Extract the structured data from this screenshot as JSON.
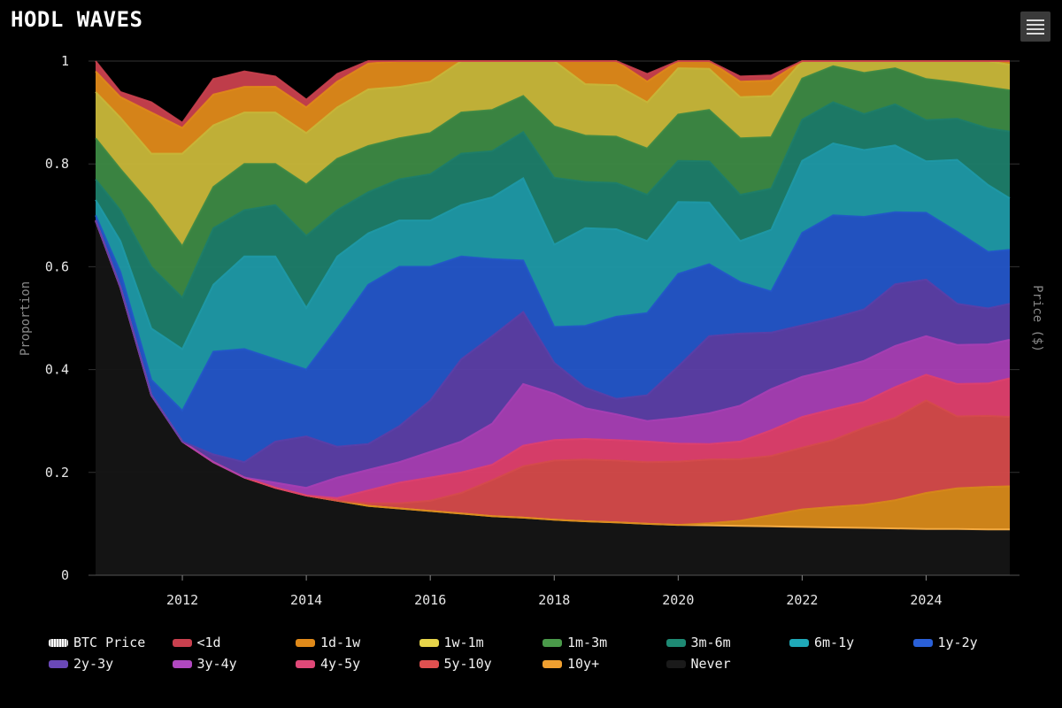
{
  "title": "HODL WAVES",
  "menu_icon": "hamburger-icon",
  "chart_data": {
    "type": "area",
    "stacked": true,
    "xlabel": "",
    "ylabel": "Proportion",
    "ylabel_right": "Price ($)",
    "ylim": [
      0,
      1
    ],
    "xlim": [
      2010.6,
      2025.35
    ],
    "y_ticks": [
      "0",
      "0.2",
      "0.4",
      "0.6",
      "0.8",
      "1"
    ],
    "x_ticks": [
      "2012",
      "2014",
      "2016",
      "2018",
      "2020",
      "2022",
      "2024"
    ],
    "grid": true,
    "legend_position": "bottom",
    "x": [
      2010.6,
      2011.0,
      2011.5,
      2012.0,
      2012.5,
      2013.0,
      2013.5,
      2014.0,
      2014.5,
      2015.0,
      2015.5,
      2016.0,
      2016.5,
      2017.0,
      2017.5,
      2018.0,
      2018.5,
      2019.0,
      2019.5,
      2020.0,
      2020.5,
      2021.0,
      2021.5,
      2022.0,
      2022.5,
      2023.0,
      2023.5,
      2024.0,
      2024.5,
      2025.0,
      2025.35
    ],
    "series": [
      {
        "name": "Never",
        "color": "#151515",
        "values": [
          0.69,
          0.56,
          0.35,
          0.26,
          0.22,
          0.19,
          0.17,
          0.155,
          0.145,
          0.135,
          0.13,
          0.125,
          0.12,
          0.115,
          0.112,
          0.108,
          0.105,
          0.103,
          0.1,
          0.098,
          0.097,
          0.096,
          0.095,
          0.094,
          0.093,
          0.092,
          0.091,
          0.09,
          0.09,
          0.089,
          0.089
        ]
      },
      {
        "name": "10y+",
        "color": "#d88a1a",
        "values": [
          0,
          0,
          0,
          0,
          0,
          0,
          0,
          0,
          0,
          0,
          0,
          0,
          0,
          0,
          0,
          0,
          0,
          0,
          0,
          0,
          0.004,
          0.01,
          0.022,
          0.034,
          0.04,
          0.045,
          0.055,
          0.07,
          0.079,
          0.083,
          0.084
        ]
      },
      {
        "name": "5y-10y",
        "color": "#d64b4b",
        "values": [
          0,
          0,
          0,
          0,
          0,
          0,
          0,
          0,
          0,
          0.005,
          0.01,
          0.02,
          0.04,
          0.07,
          0.1,
          0.115,
          0.12,
          0.12,
          0.12,
          0.123,
          0.124,
          0.12,
          0.115,
          0.12,
          0.13,
          0.15,
          0.16,
          0.18,
          0.14,
          0.138,
          0.135
        ]
      },
      {
        "name": "4y-5y",
        "color": "#e0406e",
        "values": [
          0,
          0,
          0,
          0,
          0,
          0,
          0,
          0,
          0.005,
          0.025,
          0.04,
          0.045,
          0.04,
          0.03,
          0.04,
          0.04,
          0.04,
          0.04,
          0.04,
          0.035,
          0.03,
          0.034,
          0.05,
          0.06,
          0.06,
          0.05,
          0.06,
          0.05,
          0.063,
          0.063,
          0.075
        ]
      },
      {
        "name": "3y-4y",
        "color": "#a83fb5",
        "values": [
          0,
          0,
          0,
          0,
          0,
          0,
          0.01,
          0.015,
          0.04,
          0.04,
          0.04,
          0.05,
          0.06,
          0.08,
          0.12,
          0.09,
          0.06,
          0.05,
          0.04,
          0.05,
          0.06,
          0.07,
          0.08,
          0.078,
          0.077,
          0.08,
          0.08,
          0.075,
          0.076,
          0.076,
          0.075
        ]
      },
      {
        "name": "2y-3y",
        "color": "#5c3fa8",
        "values": [
          0,
          0,
          0,
          0,
          0.015,
          0.03,
          0.08,
          0.1,
          0.06,
          0.05,
          0.07,
          0.1,
          0.16,
          0.17,
          0.14,
          0.06,
          0.04,
          0.03,
          0.05,
          0.1,
          0.15,
          0.14,
          0.11,
          0.1,
          0.1,
          0.1,
          0.12,
          0.11,
          0.08,
          0.07,
          0.07
        ]
      },
      {
        "name": "1y-2y",
        "color": "#2456c9",
        "values": [
          0.01,
          0.03,
          0.03,
          0.06,
          0.2,
          0.22,
          0.16,
          0.13,
          0.23,
          0.31,
          0.31,
          0.26,
          0.2,
          0.15,
          0.1,
          0.07,
          0.12,
          0.16,
          0.16,
          0.18,
          0.14,
          0.1,
          0.08,
          0.18,
          0.2,
          0.18,
          0.14,
          0.13,
          0.14,
          0.11,
          0.105
        ]
      },
      {
        "name": "6m-1y",
        "color": "#1f9aa8",
        "values": [
          0.03,
          0.06,
          0.1,
          0.12,
          0.13,
          0.18,
          0.2,
          0.12,
          0.14,
          0.1,
          0.09,
          0.09,
          0.1,
          0.12,
          0.16,
          0.16,
          0.19,
          0.17,
          0.14,
          0.14,
          0.12,
          0.08,
          0.12,
          0.14,
          0.14,
          0.13,
          0.13,
          0.1,
          0.14,
          0.13,
          0.1
        ]
      },
      {
        "name": "3m-6m",
        "color": "#1e7e6a",
        "values": [
          0.04,
          0.06,
          0.12,
          0.1,
          0.11,
          0.09,
          0.1,
          0.14,
          0.09,
          0.08,
          0.08,
          0.09,
          0.1,
          0.09,
          0.09,
          0.13,
          0.09,
          0.09,
          0.09,
          0.08,
          0.08,
          0.09,
          0.08,
          0.08,
          0.08,
          0.07,
          0.08,
          0.08,
          0.08,
          0.11,
          0.13
        ]
      },
      {
        "name": "1m-3m",
        "color": "#3d8a45",
        "values": [
          0.08,
          0.08,
          0.12,
          0.1,
          0.08,
          0.09,
          0.08,
          0.1,
          0.1,
          0.09,
          0.08,
          0.08,
          0.08,
          0.08,
          0.07,
          0.1,
          0.09,
          0.09,
          0.09,
          0.09,
          0.1,
          0.11,
          0.1,
          0.08,
          0.07,
          0.08,
          0.07,
          0.08,
          0.07,
          0.08,
          0.08
        ]
      },
      {
        "name": "1w-1m",
        "color": "#c9b83a",
        "values": [
          0.09,
          0.1,
          0.1,
          0.18,
          0.12,
          0.1,
          0.1,
          0.1,
          0.1,
          0.11,
          0.1,
          0.1,
          0.1,
          0.1,
          0.1,
          0.14,
          0.1,
          0.1,
          0.09,
          0.09,
          0.08,
          0.08,
          0.08,
          0.07,
          0.07,
          0.07,
          0.06,
          0.06,
          0.06,
          0.06,
          0.05
        ]
      },
      {
        "name": "1d-1w",
        "color": "#e08a1a",
        "values": [
          0.04,
          0.04,
          0.08,
          0.05,
          0.06,
          0.05,
          0.05,
          0.05,
          0.05,
          0.05,
          0.05,
          0.05,
          0.04,
          0.04,
          0.05,
          0.05,
          0.05,
          0.05,
          0.04,
          0.04,
          0.03,
          0.03,
          0.03,
          0.025,
          0.025,
          0.02,
          0.02,
          0.02,
          0.02,
          0.02,
          0.02
        ]
      },
      {
        "name": "<1d",
        "color": "#c9404e",
        "values": [
          0.02,
          0.01,
          0.02,
          0.01,
          0.03,
          0.03,
          0.02,
          0.015,
          0.015,
          0.015,
          0.015,
          0.015,
          0.015,
          0.015,
          0.015,
          0.015,
          0.015,
          0.015,
          0.015,
          0.01,
          0.01,
          0.01,
          0.01,
          0.009,
          0.009,
          0.008,
          0.008,
          0.007,
          0.007,
          0.007,
          0.007
        ]
      }
    ]
  },
  "legend": [
    {
      "label": "BTC Price",
      "color": "#ffffff",
      "kind": "price"
    },
    {
      "label": "<1d",
      "color": "#c9404e"
    },
    {
      "label": "1d-1w",
      "color": "#e08a1a"
    },
    {
      "label": "1w-1m",
      "color": "#e6d44a"
    },
    {
      "label": "1m-3m",
      "color": "#4a9a4a"
    },
    {
      "label": "3m-6m",
      "color": "#1e8a74"
    },
    {
      "label": "6m-1y",
      "color": "#1fa9b8"
    },
    {
      "label": "1y-2y",
      "color": "#2a60d8"
    },
    {
      "label": "2y-3y",
      "color": "#6a48b8"
    },
    {
      "label": "3y-4y",
      "color": "#b048c0"
    },
    {
      "label": "4y-5y",
      "color": "#e04878"
    },
    {
      "label": "5y-10y",
      "color": "#e05050"
    },
    {
      "label": "10y+",
      "color": "#f0a030"
    },
    {
      "label": "Never",
      "color": "#1a1a1a"
    }
  ]
}
